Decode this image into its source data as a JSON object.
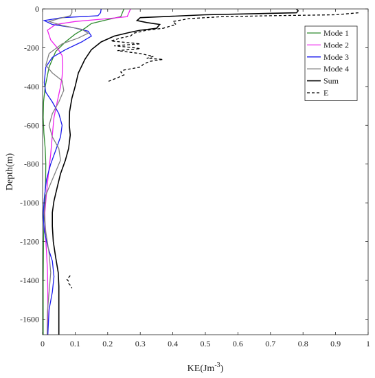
{
  "chart_data": {
    "type": "line",
    "xlabel": "KE(Jm",
    "xlabel_sup": "-3",
    "xlabel_tail": ")",
    "ylabel": "Depth(m)",
    "xlim": [
      0,
      1
    ],
    "ylim": [
      -1680,
      0
    ],
    "xticks": [
      0,
      0.1,
      0.2,
      0.3,
      0.4,
      0.5,
      0.6,
      0.7,
      0.8,
      0.9,
      1
    ],
    "xtick_labels": [
      "0",
      "0.1",
      "0.2",
      "0.3",
      "0.4",
      "0.5",
      "0.6",
      "0.7",
      "0.8",
      "0.9",
      "1"
    ],
    "yticks": [
      0,
      -200,
      -400,
      -600,
      -800,
      -1000,
      -1200,
      -1400,
      -1600
    ],
    "ytick_labels": [
      "0",
      "-200",
      "-400",
      "-600",
      "-800",
      "-1000",
      "-1200",
      "-1400",
      "-1600"
    ],
    "grid": false,
    "legend_position": "top-right",
    "series": [
      {
        "name": "Mode 1",
        "color": "#2e8b2e",
        "style": "solid",
        "points": [
          [
            0.25,
            0
          ],
          [
            0.245,
            -20
          ],
          [
            0.24,
            -40
          ],
          [
            0.2,
            -55
          ],
          [
            0.15,
            -75
          ],
          [
            0.13,
            -100
          ],
          [
            0.1,
            -130
          ],
          [
            0.07,
            -170
          ],
          [
            0.04,
            -220
          ],
          [
            0.02,
            -300
          ],
          [
            0.008,
            -400
          ],
          [
            0.003,
            -480
          ],
          [
            0.002,
            -560
          ],
          [
            0.004,
            -640
          ],
          [
            0.008,
            -720
          ],
          [
            0.01,
            -800
          ],
          [
            0.009,
            -900
          ],
          [
            0.006,
            -1000
          ],
          [
            0.004,
            -1100
          ],
          [
            0.003,
            -1200
          ],
          [
            0.002,
            -1400
          ],
          [
            0.002,
            -1680
          ]
        ]
      },
      {
        "name": "Mode 2",
        "color": "#ee22ee",
        "style": "solid",
        "points": [
          [
            0.27,
            0
          ],
          [
            0.265,
            -20
          ],
          [
            0.26,
            -40
          ],
          [
            0.2,
            -50
          ],
          [
            0.1,
            -65
          ],
          [
            0.04,
            -80
          ],
          [
            0.015,
            -110
          ],
          [
            0.025,
            -160
          ],
          [
            0.045,
            -200
          ],
          [
            0.06,
            -240
          ],
          [
            0.062,
            -290
          ],
          [
            0.06,
            -350
          ],
          [
            0.055,
            -400
          ],
          [
            0.045,
            -480
          ],
          [
            0.035,
            -560
          ],
          [
            0.03,
            -650
          ],
          [
            0.025,
            -750
          ],
          [
            0.018,
            -850
          ],
          [
            0.012,
            -950
          ],
          [
            0.007,
            -1050
          ],
          [
            0.008,
            -1150
          ],
          [
            0.012,
            -1250
          ],
          [
            0.015,
            -1350
          ],
          [
            0.016,
            -1450
          ],
          [
            0.016,
            -1680
          ]
        ]
      },
      {
        "name": "Mode 3",
        "color": "#1a1aee",
        "style": "solid",
        "points": [
          [
            0.18,
            0
          ],
          [
            0.178,
            -20
          ],
          [
            0.17,
            -35
          ],
          [
            0.06,
            -45
          ],
          [
            0.005,
            -60
          ],
          [
            0.03,
            -80
          ],
          [
            0.09,
            -95
          ],
          [
            0.14,
            -115
          ],
          [
            0.15,
            -140
          ],
          [
            0.12,
            -170
          ],
          [
            0.07,
            -210
          ],
          [
            0.03,
            -250
          ],
          [
            0.01,
            -300
          ],
          [
            0.005,
            -380
          ],
          [
            0.01,
            -430
          ],
          [
            0.03,
            -480
          ],
          [
            0.05,
            -540
          ],
          [
            0.06,
            -600
          ],
          [
            0.055,
            -660
          ],
          [
            0.04,
            -730
          ],
          [
            0.025,
            -800
          ],
          [
            0.012,
            -880
          ],
          [
            0.005,
            -980
          ],
          [
            0.002,
            -1060
          ],
          [
            0.005,
            -1140
          ],
          [
            0.015,
            -1220
          ],
          [
            0.03,
            -1300
          ],
          [
            0.035,
            -1380
          ],
          [
            0.03,
            -1460
          ],
          [
            0.02,
            -1550
          ],
          [
            0.016,
            -1680
          ]
        ]
      },
      {
        "name": "Mode 4",
        "color": "#808080",
        "style": "solid",
        "points": [
          [
            0.09,
            0
          ],
          [
            0.09,
            -20
          ],
          [
            0.085,
            -35
          ],
          [
            0.05,
            -50
          ],
          [
            0.02,
            -65
          ],
          [
            0.06,
            -85
          ],
          [
            0.12,
            -105
          ],
          [
            0.14,
            -125
          ],
          [
            0.11,
            -150
          ],
          [
            0.06,
            -180
          ],
          [
            0.02,
            -230
          ],
          [
            0.01,
            -290
          ],
          [
            0.03,
            -330
          ],
          [
            0.06,
            -370
          ],
          [
            0.065,
            -420
          ],
          [
            0.05,
            -480
          ],
          [
            0.03,
            -540
          ],
          [
            0.02,
            -600
          ],
          [
            0.03,
            -660
          ],
          [
            0.05,
            -720
          ],
          [
            0.055,
            -780
          ],
          [
            0.04,
            -840
          ],
          [
            0.025,
            -900
          ],
          [
            0.01,
            -960
          ],
          [
            0.005,
            -1050
          ],
          [
            0.01,
            -1150
          ],
          [
            0.02,
            -1260
          ],
          [
            0.025,
            -1360
          ],
          [
            0.02,
            -1460
          ],
          [
            0.015,
            -1560
          ],
          [
            0.014,
            -1680
          ]
        ]
      },
      {
        "name": "Sum",
        "color": "#000000",
        "style": "solid",
        "points": [
          [
            0.78,
            0
          ],
          [
            0.785,
            -10
          ],
          [
            0.78,
            -20
          ],
          [
            0.5,
            -30
          ],
          [
            0.3,
            -45
          ],
          [
            0.29,
            -60
          ],
          [
            0.32,
            -70
          ],
          [
            0.36,
            -80
          ],
          [
            0.35,
            -100
          ],
          [
            0.3,
            -110
          ],
          [
            0.27,
            -120
          ],
          [
            0.22,
            -140
          ],
          [
            0.18,
            -170
          ],
          [
            0.15,
            -210
          ],
          [
            0.13,
            -260
          ],
          [
            0.11,
            -330
          ],
          [
            0.1,
            -400
          ],
          [
            0.09,
            -460
          ],
          [
            0.083,
            -530
          ],
          [
            0.082,
            -600
          ],
          [
            0.085,
            -650
          ],
          [
            0.08,
            -720
          ],
          [
            0.07,
            -780
          ],
          [
            0.055,
            -850
          ],
          [
            0.045,
            -920
          ],
          [
            0.035,
            -990
          ],
          [
            0.03,
            -1050
          ],
          [
            0.03,
            -1120
          ],
          [
            0.033,
            -1200
          ],
          [
            0.04,
            -1280
          ],
          [
            0.048,
            -1360
          ],
          [
            0.05,
            -1430
          ],
          [
            0.05,
            -1500
          ],
          [
            0.05,
            -1680
          ]
        ]
      },
      {
        "name": "E",
        "color": "#000000",
        "style": "dashed",
        "points": [
          [
            0.97,
            -20
          ],
          [
            0.9,
            -30
          ],
          [
            0.7,
            -35
          ],
          [
            0.55,
            -40
          ],
          [
            0.45,
            -50
          ],
          [
            0.4,
            -65
          ],
          [
            0.41,
            -80
          ],
          [
            0.37,
            -100
          ],
          [
            0.32,
            -110
          ],
          [
            0.28,
            -125
          ],
          [
            0.27,
            -140
          ],
          [
            0.24,
            -150
          ],
          [
            0.21,
            -165
          ],
          [
            0.27,
            -175
          ],
          [
            0.3,
            -180
          ],
          [
            0.22,
            -190
          ],
          [
            0.28,
            -200
          ],
          [
            0.3,
            -205
          ],
          [
            0.23,
            -215
          ],
          [
            0.3,
            -230
          ],
          [
            0.34,
            -245
          ],
          [
            0.32,
            -255
          ],
          [
            0.37,
            -260
          ],
          [
            0.33,
            -270
          ],
          [
            0.31,
            -285
          ],
          [
            0.3,
            -300
          ],
          [
            0.25,
            -315
          ],
          [
            0.24,
            -325
          ],
          [
            0.25,
            -340
          ],
          [
            0.23,
            -355
          ],
          [
            0.2,
            -375
          ]
        ]
      },
      {
        "name": "",
        "color": "#000000",
        "style": "dashed",
        "points": [
          [
            0.085,
            -1375
          ],
          [
            0.08,
            -1385
          ],
          [
            0.075,
            -1395
          ],
          [
            0.08,
            -1405
          ],
          [
            0.08,
            -1415
          ],
          [
            0.085,
            -1425
          ],
          [
            0.09,
            -1440
          ]
        ]
      }
    ]
  }
}
